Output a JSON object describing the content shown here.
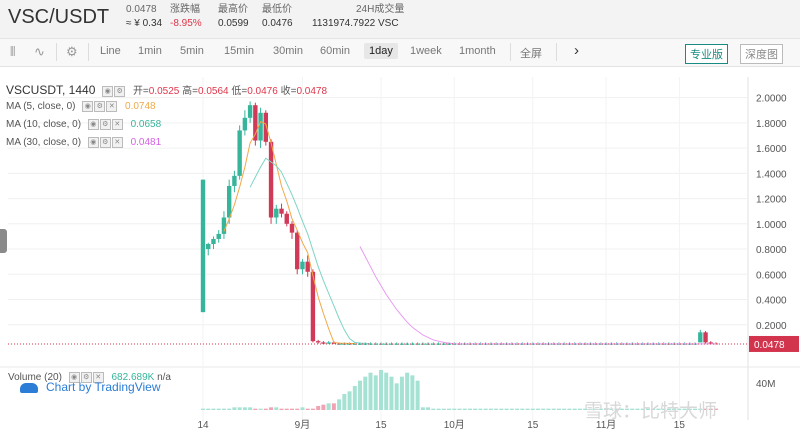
{
  "header": {
    "pair": "VSC/USDT",
    "last_price": "0.0478",
    "cny_price": "≈ ¥ 0.34",
    "change_label": "涨跌幅",
    "change_value": "-8.95%",
    "high_label": "最高价",
    "high_value": "0.0599",
    "low_label": "最低价",
    "low_value": "0.0476",
    "volume_label": "24H成交量",
    "volume_value": "1131974.7922 VSC"
  },
  "toolbar": {
    "intervals": [
      "Line",
      "1min",
      "5min",
      "15min",
      "30min",
      "60min",
      "1day",
      "1week",
      "1month"
    ],
    "active_interval": "1day",
    "fullscreen": "全屏",
    "next_icon": "chevron-right-icon",
    "pro_label": "专业版",
    "depth_label": "深度图"
  },
  "legend": {
    "symbol": "VSCUSDT, 1440",
    "open_label": "开=",
    "open_value": "0.0525",
    "high_label": "高=",
    "high_value": "0.0564",
    "low_label": "低=",
    "low_value": "0.0476",
    "close_label": "收=",
    "close_value": "0.0478",
    "ma5_label": "MA (5, close, 0)",
    "ma5_value": "0.0748",
    "ma10_label": "MA (10, close, 0)",
    "ma10_value": "0.0658",
    "ma30_label": "MA (30, close, 0)",
    "ma30_value": "0.0481",
    "volume_label": "Volume (20)",
    "volume_value": "682.689K",
    "volume_na": "n/a"
  },
  "tv_logo": "Chart by TradingView",
  "watermark": "雪球：比特大师",
  "colors": {
    "up": "#36b59b",
    "down": "#d03a58",
    "ma5": "#f0a848",
    "ma10": "#7fd4c4",
    "ma30": "#e79bf0",
    "price_tag": "#d3344d"
  },
  "chart_data": {
    "type": "candlestick",
    "title": "VSCUSDT, 1440",
    "y_ticks": [
      "2.0000",
      "1.8000",
      "1.6000",
      "1.4000",
      "1.2000",
      "1.0000",
      "0.8000",
      "0.6000",
      "0.4000",
      "0.2000"
    ],
    "ylim": [
      0,
      2.1
    ],
    "x_ticks": [
      "14",
      "9月",
      "15",
      "10月",
      "15",
      "11月",
      "15"
    ],
    "last_price_tag": "0.0478",
    "volume_axis_label": "40M",
    "candles": [
      [
        0.3,
        1.35,
        0.3,
        1.35
      ],
      [
        0.8,
        0.85,
        0.75,
        0.84
      ],
      [
        0.84,
        0.9,
        0.8,
        0.88
      ],
      [
        0.88,
        0.95,
        0.85,
        0.92
      ],
      [
        0.92,
        1.1,
        0.88,
        1.05
      ],
      [
        1.05,
        1.35,
        1.0,
        1.3
      ],
      [
        1.3,
        1.42,
        1.25,
        1.38
      ],
      [
        1.38,
        1.78,
        1.35,
        1.74
      ],
      [
        1.74,
        1.9,
        1.7,
        1.84
      ],
      [
        1.84,
        1.97,
        1.8,
        1.94
      ],
      [
        1.94,
        1.96,
        1.62,
        1.66
      ],
      [
        1.66,
        1.92,
        1.6,
        1.88
      ],
      [
        1.88,
        1.9,
        1.62,
        1.65
      ],
      [
        1.65,
        1.67,
        1.0,
        1.05
      ],
      [
        1.05,
        1.15,
        1.0,
        1.12
      ],
      [
        1.12,
        1.16,
        1.05,
        1.08
      ],
      [
        1.08,
        1.1,
        0.98,
        1.0
      ],
      [
        1.0,
        1.02,
        0.88,
        0.93
      ],
      [
        0.93,
        0.95,
        0.6,
        0.64
      ],
      [
        0.64,
        0.72,
        0.6,
        0.7
      ],
      [
        0.7,
        0.75,
        0.58,
        0.62
      ],
      [
        0.62,
        0.64,
        0.06,
        0.07
      ],
      [
        0.07,
        0.08,
        0.05,
        0.06
      ],
      [
        0.06,
        0.07,
        0.05,
        0.05
      ],
      [
        0.05,
        0.07,
        0.05,
        0.06
      ],
      [
        0.06,
        0.07,
        0.05,
        0.05
      ],
      [
        0.05,
        0.06,
        0.04,
        0.05
      ],
      [
        0.05,
        0.06,
        0.04,
        0.05
      ],
      [
        0.05,
        0.06,
        0.04,
        0.05
      ],
      [
        0.05,
        0.06,
        0.04,
        0.05
      ],
      [
        0.05,
        0.06,
        0.04,
        0.05
      ],
      [
        0.05,
        0.06,
        0.04,
        0.05
      ],
      [
        0.05,
        0.06,
        0.04,
        0.05
      ],
      [
        0.05,
        0.06,
        0.04,
        0.05
      ],
      [
        0.05,
        0.06,
        0.04,
        0.05
      ],
      [
        0.05,
        0.06,
        0.04,
        0.05
      ],
      [
        0.05,
        0.06,
        0.04,
        0.05
      ],
      [
        0.05,
        0.06,
        0.04,
        0.05
      ],
      [
        0.05,
        0.06,
        0.04,
        0.05
      ],
      [
        0.05,
        0.06,
        0.04,
        0.05
      ],
      [
        0.05,
        0.06,
        0.04,
        0.05
      ],
      [
        0.05,
        0.06,
        0.04,
        0.05
      ],
      [
        0.05,
        0.06,
        0.04,
        0.05
      ],
      [
        0.05,
        0.06,
        0.04,
        0.05
      ],
      [
        0.05,
        0.06,
        0.04,
        0.05
      ],
      [
        0.05,
        0.06,
        0.04,
        0.05
      ],
      [
        0.05,
        0.06,
        0.04,
        0.05
      ],
      [
        0.05,
        0.06,
        0.04,
        0.05
      ],
      [
        0.05,
        0.06,
        0.04,
        0.05
      ],
      [
        0.05,
        0.06,
        0.04,
        0.05
      ],
      [
        0.05,
        0.06,
        0.04,
        0.05
      ],
      [
        0.05,
        0.06,
        0.04,
        0.05
      ],
      [
        0.05,
        0.06,
        0.04,
        0.05
      ],
      [
        0.05,
        0.06,
        0.04,
        0.05
      ],
      [
        0.05,
        0.06,
        0.04,
        0.05
      ],
      [
        0.05,
        0.06,
        0.04,
        0.05
      ],
      [
        0.05,
        0.06,
        0.04,
        0.05
      ],
      [
        0.05,
        0.06,
        0.04,
        0.05
      ],
      [
        0.05,
        0.06,
        0.04,
        0.05
      ],
      [
        0.05,
        0.06,
        0.04,
        0.05
      ],
      [
        0.05,
        0.06,
        0.04,
        0.05
      ],
      [
        0.05,
        0.06,
        0.04,
        0.05
      ],
      [
        0.05,
        0.06,
        0.04,
        0.05
      ],
      [
        0.05,
        0.06,
        0.04,
        0.05
      ],
      [
        0.05,
        0.06,
        0.04,
        0.05
      ],
      [
        0.05,
        0.06,
        0.04,
        0.05
      ],
      [
        0.05,
        0.06,
        0.04,
        0.05
      ],
      [
        0.05,
        0.06,
        0.04,
        0.05
      ],
      [
        0.05,
        0.06,
        0.04,
        0.05
      ],
      [
        0.05,
        0.06,
        0.04,
        0.05
      ],
      [
        0.05,
        0.06,
        0.04,
        0.05
      ],
      [
        0.05,
        0.06,
        0.04,
        0.05
      ],
      [
        0.05,
        0.06,
        0.04,
        0.05
      ],
      [
        0.05,
        0.06,
        0.04,
        0.05
      ],
      [
        0.05,
        0.06,
        0.04,
        0.05
      ],
      [
        0.05,
        0.06,
        0.04,
        0.05
      ],
      [
        0.05,
        0.06,
        0.04,
        0.05
      ],
      [
        0.05,
        0.06,
        0.04,
        0.05
      ],
      [
        0.05,
        0.06,
        0.04,
        0.05
      ],
      [
        0.05,
        0.06,
        0.04,
        0.05
      ],
      [
        0.05,
        0.06,
        0.04,
        0.05
      ],
      [
        0.05,
        0.06,
        0.04,
        0.05
      ],
      [
        0.05,
        0.06,
        0.04,
        0.05
      ],
      [
        0.05,
        0.06,
        0.04,
        0.05
      ],
      [
        0.05,
        0.06,
        0.04,
        0.05
      ],
      [
        0.05,
        0.06,
        0.04,
        0.05
      ],
      [
        0.05,
        0.06,
        0.04,
        0.05
      ],
      [
        0.05,
        0.06,
        0.04,
        0.05
      ],
      [
        0.05,
        0.06,
        0.04,
        0.05
      ],
      [
        0.05,
        0.06,
        0.04,
        0.05
      ],
      [
        0.05,
        0.06,
        0.04,
        0.05
      ],
      [
        0.05,
        0.06,
        0.04,
        0.05
      ],
      [
        0.05,
        0.06,
        0.04,
        0.05
      ],
      [
        0.05,
        0.06,
        0.04,
        0.05
      ],
      [
        0.05,
        0.06,
        0.04,
        0.05
      ],
      [
        0.06,
        0.16,
        0.06,
        0.14
      ],
      [
        0.14,
        0.15,
        0.05,
        0.06
      ],
      [
        0.06,
        0.07,
        0.05,
        0.052
      ],
      [
        0.052,
        0.06,
        0.047,
        0.0478
      ]
    ],
    "volumes": [
      1,
      1,
      1,
      1,
      1,
      1,
      2,
      2,
      2,
      2,
      1,
      1,
      1,
      2,
      2,
      1,
      1,
      1,
      1,
      2,
      1,
      1,
      3,
      4,
      5,
      5,
      8,
      12,
      14,
      18,
      22,
      25,
      28,
      26,
      30,
      28,
      25,
      20,
      25,
      28,
      26,
      22,
      2,
      2,
      1,
      1,
      1,
      1,
      1,
      1,
      1,
      1,
      1,
      1,
      1,
      1,
      1,
      1,
      1,
      1,
      1,
      1,
      1,
      1,
      1,
      1,
      1,
      1,
      1,
      1,
      1,
      1,
      1,
      1,
      1,
      1,
      1,
      1,
      1,
      1,
      1,
      1,
      1,
      1,
      1,
      1,
      1,
      1,
      1,
      1,
      1,
      1,
      1,
      1,
      1,
      1,
      1,
      1,
      1,
      1
    ],
    "ma5": [
      null,
      null,
      null,
      null,
      0.94,
      1.04,
      1.15,
      1.29,
      1.45,
      1.64,
      1.71,
      1.81,
      1.79,
      1.64,
      1.47,
      1.3,
      1.18,
      1.04,
      0.95,
      0.85,
      0.77,
      0.59,
      0.42,
      0.29,
      0.17,
      0.06,
      0.055,
      0.053,
      0.052,
      0.051
    ],
    "ma10": [
      null,
      null,
      null,
      null,
      null,
      null,
      null,
      null,
      null,
      1.29,
      1.37,
      1.45,
      1.52,
      1.49,
      1.46,
      1.41,
      1.32,
      1.23,
      1.13,
      1.02,
      0.92,
      0.79,
      0.66,
      0.55,
      0.45,
      0.35,
      0.25,
      0.16,
      0.09,
      0.06,
      0.055,
      0.052,
      0.051
    ],
    "ma30": [
      0.82,
      0.74,
      0.66,
      0.58,
      0.51,
      0.44,
      0.38,
      0.32,
      0.27,
      0.22,
      0.18,
      0.15,
      0.12,
      0.1,
      0.08,
      0.07,
      0.06,
      0.055,
      0.05,
      0.048,
      0.0481
    ]
  }
}
